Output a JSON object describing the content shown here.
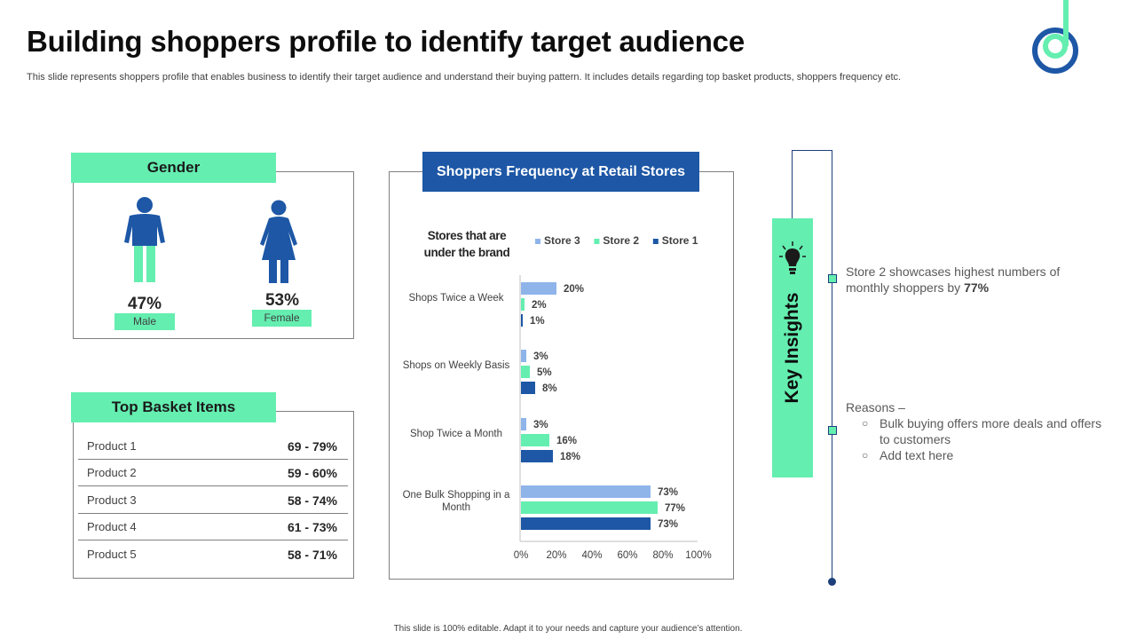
{
  "slide": {
    "title": "Building shoppers profile to identify target audience",
    "subtitle": "This slide represents shoppers profile that enables business to identify their target audience and understand their buying pattern. It includes details regarding top basket products, shoppers frequency etc.",
    "footer": "This slide is 100% editable. Adapt it to your needs and capture your audience’s attention."
  },
  "gender": {
    "header": "Gender",
    "male": {
      "percent": "47%",
      "label": "Male"
    },
    "female": {
      "percent": "53%",
      "label": "Female"
    }
  },
  "basket": {
    "header": "Top Basket Items",
    "rows": [
      {
        "product": "Product 1",
        "range": "69 - 79%"
      },
      {
        "product": "Product 2",
        "range": "59 - 60%"
      },
      {
        "product": "Product 3",
        "range": "58 - 74%"
      },
      {
        "product": "Product 4",
        "range": "61 - 73%"
      },
      {
        "product": "Product 5",
        "range": "58 - 71%"
      }
    ]
  },
  "chart_header": "Shoppers Frequency at Retail Stores",
  "chart_data": {
    "type": "bar",
    "orientation": "horizontal",
    "title": "Stores that are under the brand",
    "categories": [
      "Shops Twice a Week",
      "Shops on Weekly Basis",
      "Shop Twice a Month",
      "One Bulk Shopping in a Month"
    ],
    "series": [
      {
        "name": "Store 3",
        "color": "#8fb4ea",
        "values": [
          20,
          3,
          3,
          73
        ]
      },
      {
        "name": "Store 2",
        "color": "#64eeb0",
        "values": [
          2,
          5,
          16,
          77
        ]
      },
      {
        "name": "Store 1",
        "color": "#1d57a6",
        "values": [
          1,
          8,
          18,
          73
        ]
      }
    ],
    "x_ticks": [
      "0%",
      "20%",
      "40%",
      "60%",
      "80%",
      "100%"
    ],
    "xlim": [
      0,
      100
    ],
    "grid": false,
    "legend": "top",
    "value_suffix": "%"
  },
  "insights": {
    "label": "Key Insights",
    "point1_text": "Store 2 showcases highest numbers of monthly shoppers by ",
    "point1_bold": "77%",
    "reasons_title": "Reasons –",
    "reasons": [
      "Bulk buying offers more deals and offers to customers",
      "Add text here"
    ]
  },
  "colors": {
    "accent_green": "#64eeb0",
    "accent_blue": "#1d57a6",
    "light_blue": "#8fb4ea"
  }
}
